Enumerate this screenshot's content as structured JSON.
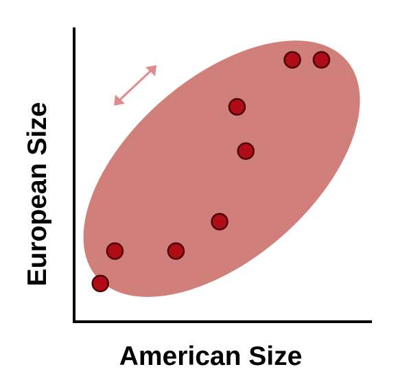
{
  "chart_data": {
    "type": "scatter",
    "title": "",
    "xlabel": "American Size",
    "ylabel": "European Size",
    "xlim": [
      0,
      10
    ],
    "ylim": [
      0,
      10
    ],
    "grid": false,
    "legend": "none",
    "series": [
      {
        "points": [
          {
            "x": 0.9,
            "y": 1.3
          },
          {
            "x": 1.4,
            "y": 2.4
          },
          {
            "x": 3.5,
            "y": 2.4
          },
          {
            "x": 5.0,
            "y": 3.4
          },
          {
            "x": 5.9,
            "y": 5.8
          },
          {
            "x": 5.6,
            "y": 7.3
          },
          {
            "x": 7.5,
            "y": 8.9
          },
          {
            "x": 8.5,
            "y": 8.9
          }
        ]
      }
    ],
    "annotations": [
      {
        "type": "ellipse",
        "meaning": "cluster of correlated points"
      },
      {
        "type": "double-arrow",
        "meaning": "spread direction"
      }
    ],
    "colors": {
      "point_fill": "#b00d17",
      "point_stroke": "#4a0005",
      "ellipse_fill": "#d07f7b",
      "arrow": "#e08a8e",
      "axis": "#000000"
    }
  }
}
